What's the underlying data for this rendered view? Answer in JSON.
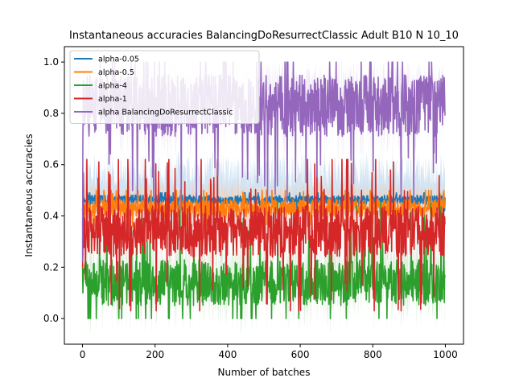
{
  "chart_data": {
    "type": "line",
    "title": "Instantaneous accuracies BalancingDoResurrectClassic Adult B10 N 10_10",
    "xlabel": "Number of batches",
    "ylabel": "Instantaneous accuracies",
    "xlim": [
      -50,
      1050
    ],
    "ylim": [
      -0.1,
      1.06
    ],
    "x_ticks": [
      0,
      200,
      400,
      600,
      800,
      1000
    ],
    "y_ticks": [
      0.0,
      0.2,
      0.4,
      0.6,
      0.8,
      1.0
    ],
    "x_tick_labels": [
      "0",
      "200",
      "400",
      "600",
      "800",
      "1000"
    ],
    "y_tick_labels": [
      "0.0",
      "0.2",
      "0.4",
      "0.6",
      "0.8",
      "1.0"
    ],
    "legend_position": "top-left",
    "grid": false,
    "n_points": 1000,
    "series": [
      {
        "name": "alpha-0.05",
        "color": "#1f77b4",
        "band_color": "#aecde8",
        "start": [
          0.2,
          0.44
        ],
        "mean": 0.463,
        "spread": 0.018,
        "min": 0.42,
        "max": 0.49,
        "band_mean": 0.56,
        "band_spread": 0.07
      },
      {
        "name": "alpha-0.5",
        "color": "#ff7f0e",
        "band_color": "#f7c9a8",
        "start": [
          0.2,
          0.42
        ],
        "mean": 0.43,
        "spread": 0.035,
        "min": 0.36,
        "max": 0.5,
        "band_mean": 0.48,
        "band_spread": 0.04
      },
      {
        "name": "alpha-4",
        "color": "#2ca02c",
        "band_color": "#bfe3bf",
        "start": [
          0.2,
          0.1
        ],
        "mean": 0.14,
        "spread": 0.09,
        "min": 0.0,
        "max": 0.6,
        "band_mean": 0.2,
        "band_spread": 0.14
      },
      {
        "name": "alpha-1",
        "color": "#d62728",
        "band_color": "#f0b8b8",
        "start": [
          0.2,
          0.25
        ],
        "mean": 0.34,
        "spread": 0.1,
        "min": 0.03,
        "max": 0.62,
        "band_mean": 0.33,
        "band_spread": 0.16
      },
      {
        "name": "alpha BalancingDoResurrectClassic",
        "color": "#9467bd",
        "band_color": "#e2d7ee",
        "start": [
          0.2,
          0.7
        ],
        "mean": 0.83,
        "spread": 0.12,
        "min": 0.22,
        "max": 1.0,
        "band_mean": 0.9,
        "band_spread": 0.1
      }
    ]
  }
}
